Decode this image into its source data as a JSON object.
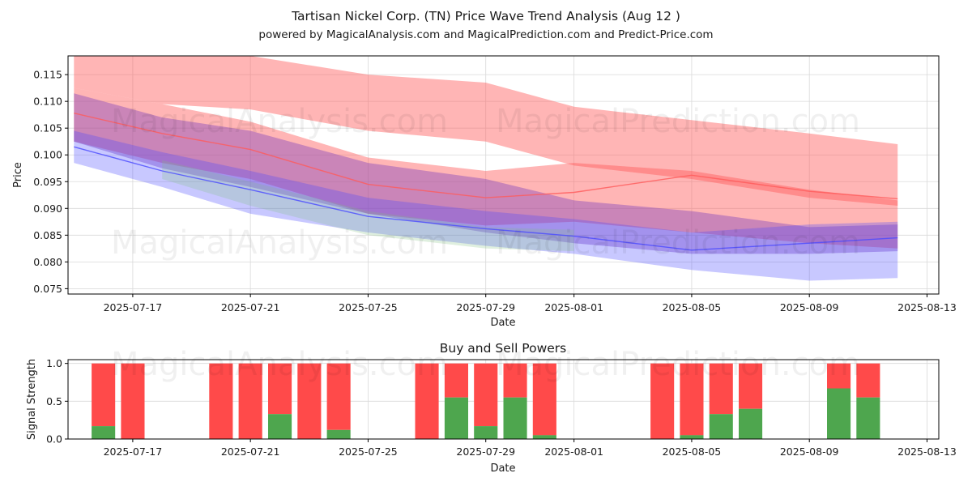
{
  "titles": {
    "main": "Tartisan Nickel Corp. (TN) Price Wave Trend Analysis (Aug 12 )",
    "subtitle": "powered by MagicalAnalysis.com and MagicalPrediction.com and Predict-Price.com"
  },
  "watermarks": [
    "MagicalAnalysis.com",
    "MagicalPrediction.com"
  ],
  "colors": {
    "red": "#ff5a5a",
    "blue": "#4a4aff",
    "green": "#7fbf7f",
    "purple": "#7a3fbf",
    "bar_buy": "#4ea64e",
    "bar_sell": "#ff4a4a"
  },
  "chart_data": [
    {
      "type": "area",
      "title": "",
      "xlabel": "Date",
      "ylabel": "Price",
      "xlim": [
        "2025-07-14.8",
        "2025-08-13.4"
      ],
      "ylim": [
        0.074,
        0.1185
      ],
      "x_ticks": [
        "2025-07-17",
        "2025-07-21",
        "2025-07-25",
        "2025-07-29",
        "2025-08-01",
        "2025-08-05",
        "2025-08-09",
        "2025-08-13"
      ],
      "y_ticks": [
        "0.075",
        "0.080",
        "0.085",
        "0.090",
        "0.095",
        "0.100",
        "0.105",
        "0.110",
        "0.115"
      ],
      "grid": true,
      "bands": [
        {
          "name": "red-upper",
          "color": "red",
          "opacity": 0.45,
          "x": [
            "2025-07-15",
            "2025-07-18",
            "2025-07-21",
            "2025-07-25",
            "2025-07-29",
            "2025-08-01",
            "2025-08-05",
            "2025-08-09",
            "2025-08-12"
          ],
          "upper": [
            0.1195,
            0.1185,
            0.119,
            0.115,
            0.1135,
            0.109,
            0.1065,
            0.104,
            0.102
          ],
          "lower": [
            0.1125,
            0.1095,
            0.1085,
            0.1045,
            0.1025,
            0.098,
            0.0955,
            0.092,
            0.0905
          ]
        },
        {
          "name": "red-lower",
          "color": "red",
          "opacity": 0.45,
          "x": [
            "2025-07-15",
            "2025-07-18",
            "2025-07-21",
            "2025-07-25",
            "2025-07-29",
            "2025-08-01",
            "2025-08-05",
            "2025-08-09",
            "2025-08-12"
          ],
          "upper": [
            0.1125,
            0.1095,
            0.1062,
            0.0995,
            0.097,
            0.0985,
            0.097,
            0.0935,
            0.0915
          ],
          "lower": [
            0.1025,
            0.0985,
            0.0955,
            0.089,
            0.0868,
            0.0875,
            0.0855,
            0.0835,
            0.0825
          ]
        },
        {
          "name": "purple-main",
          "color": "purple",
          "opacity": 0.4,
          "x": [
            "2025-07-15",
            "2025-07-18",
            "2025-07-21",
            "2025-07-25",
            "2025-07-29",
            "2025-08-01",
            "2025-08-05",
            "2025-08-09",
            "2025-08-12"
          ],
          "upper": [
            0.1115,
            0.107,
            0.1045,
            0.0985,
            0.0955,
            0.0915,
            0.0895,
            0.0865,
            0.087
          ],
          "lower": [
            0.1025,
            0.0975,
            0.094,
            0.089,
            0.0855,
            0.0835,
            0.0815,
            0.0815,
            0.082
          ]
        },
        {
          "name": "blue-wide",
          "color": "blue",
          "opacity": 0.3,
          "x": [
            "2025-07-15",
            "2025-07-18",
            "2025-07-21",
            "2025-07-25",
            "2025-07-29",
            "2025-08-01",
            "2025-08-05",
            "2025-08-09",
            "2025-08-12"
          ],
          "upper": [
            0.1045,
            0.1005,
            0.097,
            0.092,
            0.0895,
            0.088,
            0.0855,
            0.087,
            0.0875
          ],
          "lower": [
            0.0985,
            0.094,
            0.089,
            0.0855,
            0.083,
            0.0815,
            0.0785,
            0.0765,
            0.077
          ]
        },
        {
          "name": "green-faint",
          "color": "green",
          "opacity": 0.25,
          "x": [
            "2025-07-18",
            "2025-07-21",
            "2025-07-25",
            "2025-07-29",
            "2025-08-01"
          ],
          "upper": [
            0.099,
            0.095,
            0.0895,
            0.0865,
            0.086
          ],
          "lower": [
            0.0955,
            0.0905,
            0.085,
            0.0825,
            0.082
          ]
        }
      ],
      "lines": [
        {
          "name": "red-center",
          "color": "red",
          "x": [
            "2025-07-15",
            "2025-07-18",
            "2025-07-21",
            "2025-07-25",
            "2025-07-29",
            "2025-08-01",
            "2025-08-05",
            "2025-08-09",
            "2025-08-12"
          ],
          "values": [
            0.1078,
            0.104,
            0.101,
            0.0945,
            0.092,
            0.093,
            0.0962,
            0.0932,
            0.0918
          ]
        },
        {
          "name": "blue-center",
          "color": "blue",
          "x": [
            "2025-07-15",
            "2025-07-18",
            "2025-07-21",
            "2025-07-25",
            "2025-07-29",
            "2025-08-01",
            "2025-08-05",
            "2025-08-09",
            "2025-08-12"
          ],
          "values": [
            0.1015,
            0.097,
            0.0935,
            0.0885,
            0.0862,
            0.0848,
            0.0822,
            0.0835,
            0.0845
          ]
        }
      ]
    },
    {
      "type": "bar",
      "title": "Buy and Sell Powers",
      "xlabel": "Date",
      "ylabel": "Signal Strength",
      "xlim": [
        "2025-07-14.8",
        "2025-08-13.4"
      ],
      "ylim": [
        0,
        1.05
      ],
      "x_ticks": [
        "2025-07-17",
        "2025-07-21",
        "2025-07-25",
        "2025-07-29",
        "2025-08-01",
        "2025-08-05",
        "2025-08-09",
        "2025-08-13"
      ],
      "y_ticks": [
        "0.0",
        "0.5",
        "1.0"
      ],
      "grid": true,
      "dates": [
        "2025-07-16",
        "2025-07-17",
        "2025-07-20",
        "2025-07-21",
        "2025-07-22",
        "2025-07-23",
        "2025-07-24",
        "2025-07-27",
        "2025-07-28",
        "2025-07-29",
        "2025-07-30",
        "2025-07-31",
        "2025-08-04",
        "2025-08-05",
        "2025-08-06",
        "2025-08-07",
        "2025-08-10",
        "2025-08-11"
      ],
      "buy": [
        0.17,
        0.0,
        0.0,
        0.0,
        0.33,
        0.0,
        0.12,
        0.0,
        0.55,
        0.17,
        0.55,
        0.05,
        0.0,
        0.05,
        0.33,
        0.4,
        0.67,
        0.55
      ],
      "total": [
        1,
        1,
        1,
        1,
        1,
        1,
        1,
        1,
        1,
        1,
        1,
        1,
        1,
        1,
        1,
        1,
        1,
        1
      ]
    }
  ]
}
